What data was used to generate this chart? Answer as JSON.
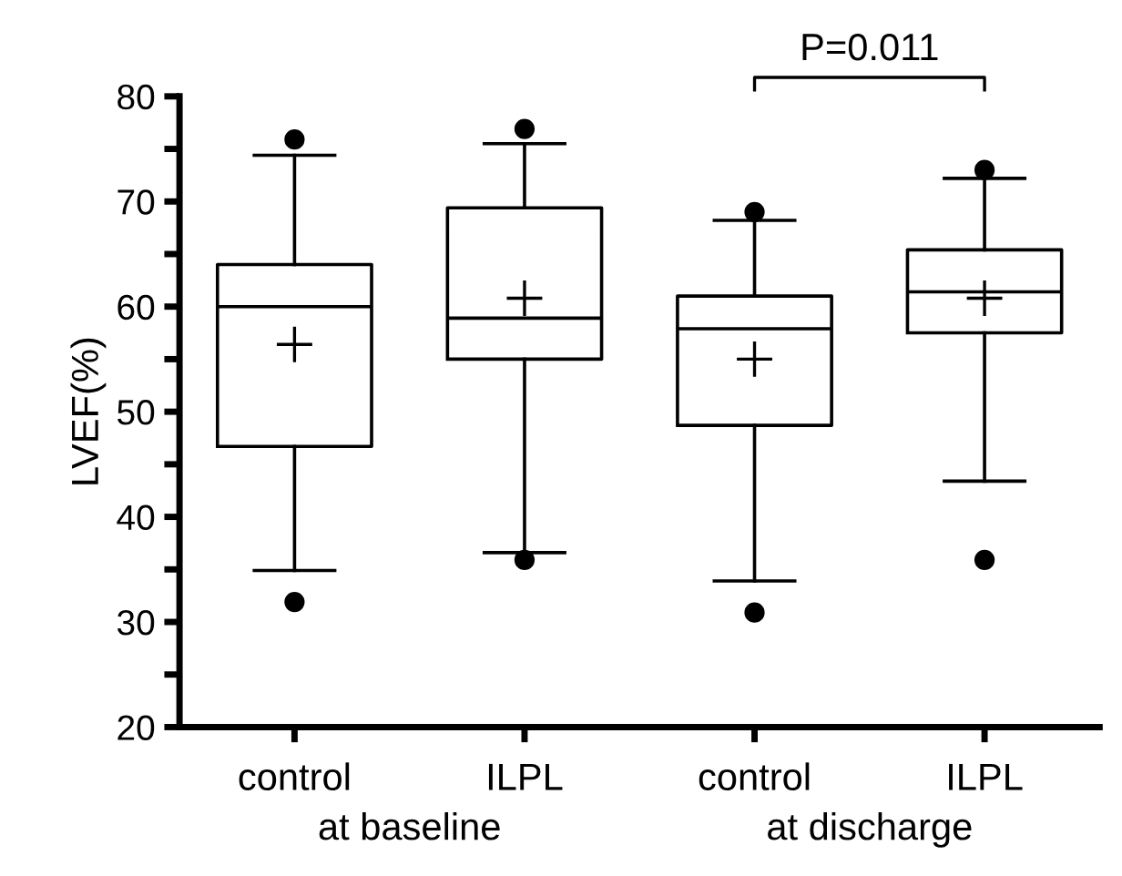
{
  "chart_data": {
    "type": "box",
    "ylabel": "LVEF(%)",
    "categories": [
      "control",
      "ILPL",
      "control",
      "ILPL"
    ],
    "boxes": [
      {
        "low": 34.9,
        "q1": 46.7,
        "median": 60.0,
        "q3": 64.0,
        "high": 74.4,
        "mean": 56.4,
        "outliers": [
          75.9,
          31.9
        ]
      },
      {
        "low": 36.6,
        "q1": 55.0,
        "median": 58.9,
        "q3": 69.4,
        "high": 75.5,
        "mean": 60.8,
        "outliers": [
          76.9,
          35.9
        ]
      },
      {
        "low": 33.9,
        "q1": 48.7,
        "median": 57.9,
        "q3": 61.0,
        "high": 68.2,
        "mean": 55.0,
        "outliers": [
          69.0,
          30.9
        ]
      },
      {
        "low": 43.4,
        "q1": 57.5,
        "median": 61.4,
        "q3": 65.4,
        "high": 72.2,
        "mean": 60.8,
        "outliers": [
          73.0,
          35.9
        ]
      }
    ],
    "color": "#000000",
    "ylim": [
      20,
      80
    ],
    "yticks": [
      20,
      {
        "value": 25,
        "label": null
      },
      30,
      {
        "value": 35,
        "label": null
      },
      40,
      {
        "value": 45,
        "label": null
      },
      50,
      {
        "value": 55,
        "label": null
      },
      60,
      {
        "value": 65,
        "label": null
      },
      70,
      {
        "value": 75,
        "label": null
      },
      80
    ],
    "grid": false,
    "annotations": [
      "at baseline",
      "at discharge",
      "P=0.011"
    ]
  }
}
